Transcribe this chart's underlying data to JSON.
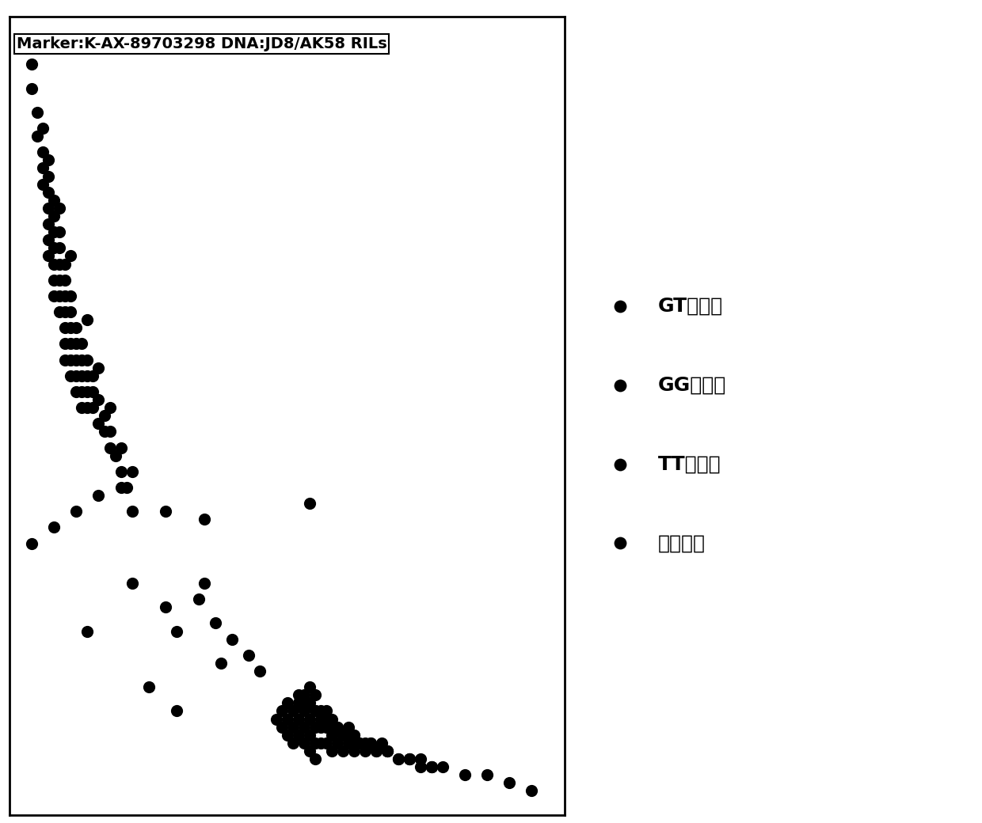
{
  "title": "Marker:K-AX-89703298 DNA:JD8/AK58 RILs",
  "title_fontsize": 14,
  "background_color": "#ffffff",
  "dot_color": "#000000",
  "dot_size": 120,
  "legend_labels": [
    "GT杂合型",
    "GG纯合型",
    "TT纯合型",
    "清水对照"
  ],
  "legend_fontsize": 18,
  "xlim": [
    0.0,
    1.0
  ],
  "ylim": [
    0.0,
    1.0
  ],
  "upper_left_x": [
    0.03,
    0.04,
    0.04,
    0.05,
    0.05,
    0.06,
    0.06,
    0.06,
    0.06,
    0.07,
    0.07,
    0.07,
    0.07,
    0.07,
    0.07,
    0.07,
    0.08,
    0.08,
    0.08,
    0.08,
    0.08,
    0.08,
    0.08,
    0.09,
    0.09,
    0.09,
    0.09,
    0.09,
    0.09,
    0.1,
    0.1,
    0.1,
    0.1,
    0.1,
    0.1,
    0.1,
    0.11,
    0.11,
    0.11,
    0.11,
    0.11,
    0.11,
    0.12,
    0.12,
    0.12,
    0.12,
    0.12,
    0.13,
    0.13,
    0.13,
    0.13,
    0.13,
    0.14,
    0.14,
    0.14,
    0.14,
    0.15,
    0.15,
    0.15,
    0.16,
    0.16,
    0.17,
    0.17,
    0.18,
    0.18,
    0.19,
    0.2,
    0.2,
    0.21,
    0.22,
    0.09,
    0.11,
    0.14,
    0.16,
    0.18,
    0.2
  ],
  "upper_left_y": [
    0.96,
    0.94,
    0.91,
    0.88,
    0.85,
    0.86,
    0.83,
    0.81,
    0.79,
    0.82,
    0.8,
    0.78,
    0.76,
    0.74,
    0.72,
    0.7,
    0.77,
    0.75,
    0.73,
    0.71,
    0.69,
    0.67,
    0.65,
    0.73,
    0.71,
    0.69,
    0.67,
    0.65,
    0.63,
    0.69,
    0.67,
    0.65,
    0.63,
    0.61,
    0.59,
    0.57,
    0.65,
    0.63,
    0.61,
    0.59,
    0.57,
    0.55,
    0.61,
    0.59,
    0.57,
    0.55,
    0.53,
    0.59,
    0.57,
    0.55,
    0.53,
    0.51,
    0.57,
    0.55,
    0.53,
    0.51,
    0.55,
    0.53,
    0.51,
    0.52,
    0.49,
    0.5,
    0.48,
    0.48,
    0.46,
    0.45,
    0.43,
    0.41,
    0.41,
    0.38,
    0.76,
    0.7,
    0.62,
    0.56,
    0.51,
    0.46
  ],
  "lower_right_x": [
    0.34,
    0.37,
    0.4,
    0.43,
    0.45,
    0.48,
    0.49,
    0.49,
    0.5,
    0.5,
    0.5,
    0.51,
    0.51,
    0.51,
    0.52,
    0.52,
    0.52,
    0.53,
    0.53,
    0.53,
    0.53,
    0.54,
    0.54,
    0.54,
    0.54,
    0.54,
    0.55,
    0.55,
    0.55,
    0.55,
    0.55,
    0.56,
    0.56,
    0.56,
    0.57,
    0.57,
    0.57,
    0.58,
    0.58,
    0.58,
    0.59,
    0.59,
    0.6,
    0.6,
    0.61,
    0.61,
    0.62,
    0.62,
    0.63,
    0.64,
    0.65,
    0.66,
    0.67,
    0.68,
    0.7,
    0.72,
    0.74,
    0.76,
    0.52,
    0.53,
    0.55,
    0.57,
    0.58,
    0.6,
    0.62,
    0.64,
    0.66,
    0.68,
    0.7,
    0.72,
    0.74,
    0.76,
    0.78,
    0.82,
    0.86,
    0.9,
    0.94,
    0.53,
    0.56,
    0.59,
    0.62,
    0.65,
    0.68,
    0.72,
    0.76
  ],
  "lower_right_y": [
    0.27,
    0.24,
    0.22,
    0.2,
    0.18,
    0.12,
    0.11,
    0.13,
    0.1,
    0.12,
    0.14,
    0.09,
    0.11,
    0.13,
    0.1,
    0.12,
    0.14,
    0.09,
    0.11,
    0.13,
    0.15,
    0.08,
    0.1,
    0.12,
    0.14,
    0.16,
    0.09,
    0.11,
    0.13,
    0.15,
    0.07,
    0.09,
    0.11,
    0.13,
    0.09,
    0.11,
    0.13,
    0.08,
    0.1,
    0.12,
    0.09,
    0.11,
    0.08,
    0.1,
    0.09,
    0.11,
    0.08,
    0.1,
    0.09,
    0.08,
    0.09,
    0.08,
    0.09,
    0.08,
    0.07,
    0.07,
    0.07,
    0.06,
    0.15,
    0.14,
    0.13,
    0.12,
    0.11,
    0.1,
    0.09,
    0.09,
    0.08,
    0.08,
    0.07,
    0.07,
    0.06,
    0.06,
    0.06,
    0.05,
    0.05,
    0.04,
    0.03,
    0.13,
    0.12,
    0.11,
    0.1,
    0.09,
    0.08,
    0.07,
    0.06
  ],
  "middle_x": [
    0.04,
    0.08,
    0.12,
    0.16,
    0.22,
    0.28,
    0.35,
    0.22,
    0.28,
    0.35,
    0.14,
    0.54,
    0.3,
    0.38,
    0.25,
    0.3
  ],
  "middle_y": [
    0.34,
    0.36,
    0.38,
    0.4,
    0.43,
    0.38,
    0.37,
    0.29,
    0.26,
    0.29,
    0.23,
    0.39,
    0.23,
    0.19,
    0.16,
    0.13
  ]
}
